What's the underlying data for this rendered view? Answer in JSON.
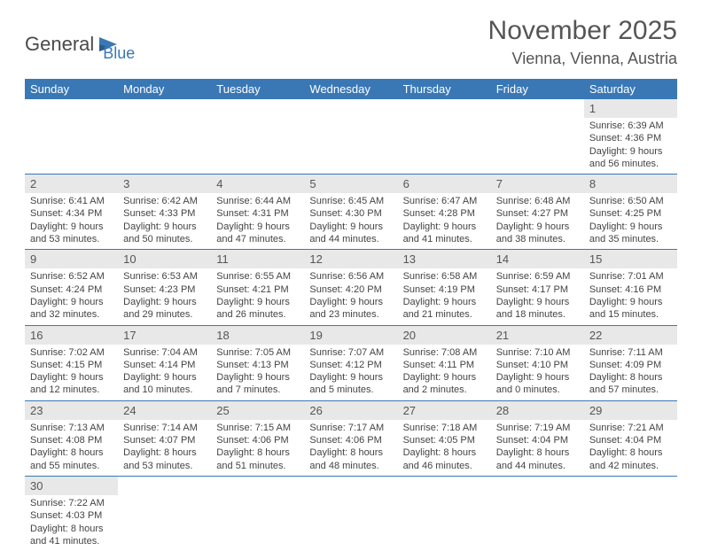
{
  "logo": {
    "part1": "General",
    "part2": "Blue"
  },
  "title": "November 2025",
  "location": "Vienna, Vienna, Austria",
  "colors": {
    "header_bar": "#3a78b5",
    "daynum_bg": "#e8e8e8",
    "text": "#444444",
    "title_text": "#555555"
  },
  "dow": [
    "Sunday",
    "Monday",
    "Tuesday",
    "Wednesday",
    "Thursday",
    "Friday",
    "Saturday"
  ],
  "weeks": [
    [
      null,
      null,
      null,
      null,
      null,
      null,
      {
        "n": "1",
        "sunrise": "Sunrise: 6:39 AM",
        "sunset": "Sunset: 4:36 PM",
        "day1": "Daylight: 9 hours",
        "day2": "and 56 minutes."
      }
    ],
    [
      {
        "n": "2",
        "sunrise": "Sunrise: 6:41 AM",
        "sunset": "Sunset: 4:34 PM",
        "day1": "Daylight: 9 hours",
        "day2": "and 53 minutes."
      },
      {
        "n": "3",
        "sunrise": "Sunrise: 6:42 AM",
        "sunset": "Sunset: 4:33 PM",
        "day1": "Daylight: 9 hours",
        "day2": "and 50 minutes."
      },
      {
        "n": "4",
        "sunrise": "Sunrise: 6:44 AM",
        "sunset": "Sunset: 4:31 PM",
        "day1": "Daylight: 9 hours",
        "day2": "and 47 minutes."
      },
      {
        "n": "5",
        "sunrise": "Sunrise: 6:45 AM",
        "sunset": "Sunset: 4:30 PM",
        "day1": "Daylight: 9 hours",
        "day2": "and 44 minutes."
      },
      {
        "n": "6",
        "sunrise": "Sunrise: 6:47 AM",
        "sunset": "Sunset: 4:28 PM",
        "day1": "Daylight: 9 hours",
        "day2": "and 41 minutes."
      },
      {
        "n": "7",
        "sunrise": "Sunrise: 6:48 AM",
        "sunset": "Sunset: 4:27 PM",
        "day1": "Daylight: 9 hours",
        "day2": "and 38 minutes."
      },
      {
        "n": "8",
        "sunrise": "Sunrise: 6:50 AM",
        "sunset": "Sunset: 4:25 PM",
        "day1": "Daylight: 9 hours",
        "day2": "and 35 minutes."
      }
    ],
    [
      {
        "n": "9",
        "sunrise": "Sunrise: 6:52 AM",
        "sunset": "Sunset: 4:24 PM",
        "day1": "Daylight: 9 hours",
        "day2": "and 32 minutes."
      },
      {
        "n": "10",
        "sunrise": "Sunrise: 6:53 AM",
        "sunset": "Sunset: 4:23 PM",
        "day1": "Daylight: 9 hours",
        "day2": "and 29 minutes."
      },
      {
        "n": "11",
        "sunrise": "Sunrise: 6:55 AM",
        "sunset": "Sunset: 4:21 PM",
        "day1": "Daylight: 9 hours",
        "day2": "and 26 minutes."
      },
      {
        "n": "12",
        "sunrise": "Sunrise: 6:56 AM",
        "sunset": "Sunset: 4:20 PM",
        "day1": "Daylight: 9 hours",
        "day2": "and 23 minutes."
      },
      {
        "n": "13",
        "sunrise": "Sunrise: 6:58 AM",
        "sunset": "Sunset: 4:19 PM",
        "day1": "Daylight: 9 hours",
        "day2": "and 21 minutes."
      },
      {
        "n": "14",
        "sunrise": "Sunrise: 6:59 AM",
        "sunset": "Sunset: 4:17 PM",
        "day1": "Daylight: 9 hours",
        "day2": "and 18 minutes."
      },
      {
        "n": "15",
        "sunrise": "Sunrise: 7:01 AM",
        "sunset": "Sunset: 4:16 PM",
        "day1": "Daylight: 9 hours",
        "day2": "and 15 minutes."
      }
    ],
    [
      {
        "n": "16",
        "sunrise": "Sunrise: 7:02 AM",
        "sunset": "Sunset: 4:15 PM",
        "day1": "Daylight: 9 hours",
        "day2": "and 12 minutes."
      },
      {
        "n": "17",
        "sunrise": "Sunrise: 7:04 AM",
        "sunset": "Sunset: 4:14 PM",
        "day1": "Daylight: 9 hours",
        "day2": "and 10 minutes."
      },
      {
        "n": "18",
        "sunrise": "Sunrise: 7:05 AM",
        "sunset": "Sunset: 4:13 PM",
        "day1": "Daylight: 9 hours",
        "day2": "and 7 minutes."
      },
      {
        "n": "19",
        "sunrise": "Sunrise: 7:07 AM",
        "sunset": "Sunset: 4:12 PM",
        "day1": "Daylight: 9 hours",
        "day2": "and 5 minutes."
      },
      {
        "n": "20",
        "sunrise": "Sunrise: 7:08 AM",
        "sunset": "Sunset: 4:11 PM",
        "day1": "Daylight: 9 hours",
        "day2": "and 2 minutes."
      },
      {
        "n": "21",
        "sunrise": "Sunrise: 7:10 AM",
        "sunset": "Sunset: 4:10 PM",
        "day1": "Daylight: 9 hours",
        "day2": "and 0 minutes."
      },
      {
        "n": "22",
        "sunrise": "Sunrise: 7:11 AM",
        "sunset": "Sunset: 4:09 PM",
        "day1": "Daylight: 8 hours",
        "day2": "and 57 minutes."
      }
    ],
    [
      {
        "n": "23",
        "sunrise": "Sunrise: 7:13 AM",
        "sunset": "Sunset: 4:08 PM",
        "day1": "Daylight: 8 hours",
        "day2": "and 55 minutes."
      },
      {
        "n": "24",
        "sunrise": "Sunrise: 7:14 AM",
        "sunset": "Sunset: 4:07 PM",
        "day1": "Daylight: 8 hours",
        "day2": "and 53 minutes."
      },
      {
        "n": "25",
        "sunrise": "Sunrise: 7:15 AM",
        "sunset": "Sunset: 4:06 PM",
        "day1": "Daylight: 8 hours",
        "day2": "and 51 minutes."
      },
      {
        "n": "26",
        "sunrise": "Sunrise: 7:17 AM",
        "sunset": "Sunset: 4:06 PM",
        "day1": "Daylight: 8 hours",
        "day2": "and 48 minutes."
      },
      {
        "n": "27",
        "sunrise": "Sunrise: 7:18 AM",
        "sunset": "Sunset: 4:05 PM",
        "day1": "Daylight: 8 hours",
        "day2": "and 46 minutes."
      },
      {
        "n": "28",
        "sunrise": "Sunrise: 7:19 AM",
        "sunset": "Sunset: 4:04 PM",
        "day1": "Daylight: 8 hours",
        "day2": "and 44 minutes."
      },
      {
        "n": "29",
        "sunrise": "Sunrise: 7:21 AM",
        "sunset": "Sunset: 4:04 PM",
        "day1": "Daylight: 8 hours",
        "day2": "and 42 minutes."
      }
    ],
    [
      {
        "n": "30",
        "sunrise": "Sunrise: 7:22 AM",
        "sunset": "Sunset: 4:03 PM",
        "day1": "Daylight: 8 hours",
        "day2": "and 41 minutes."
      },
      null,
      null,
      null,
      null,
      null,
      null
    ]
  ]
}
